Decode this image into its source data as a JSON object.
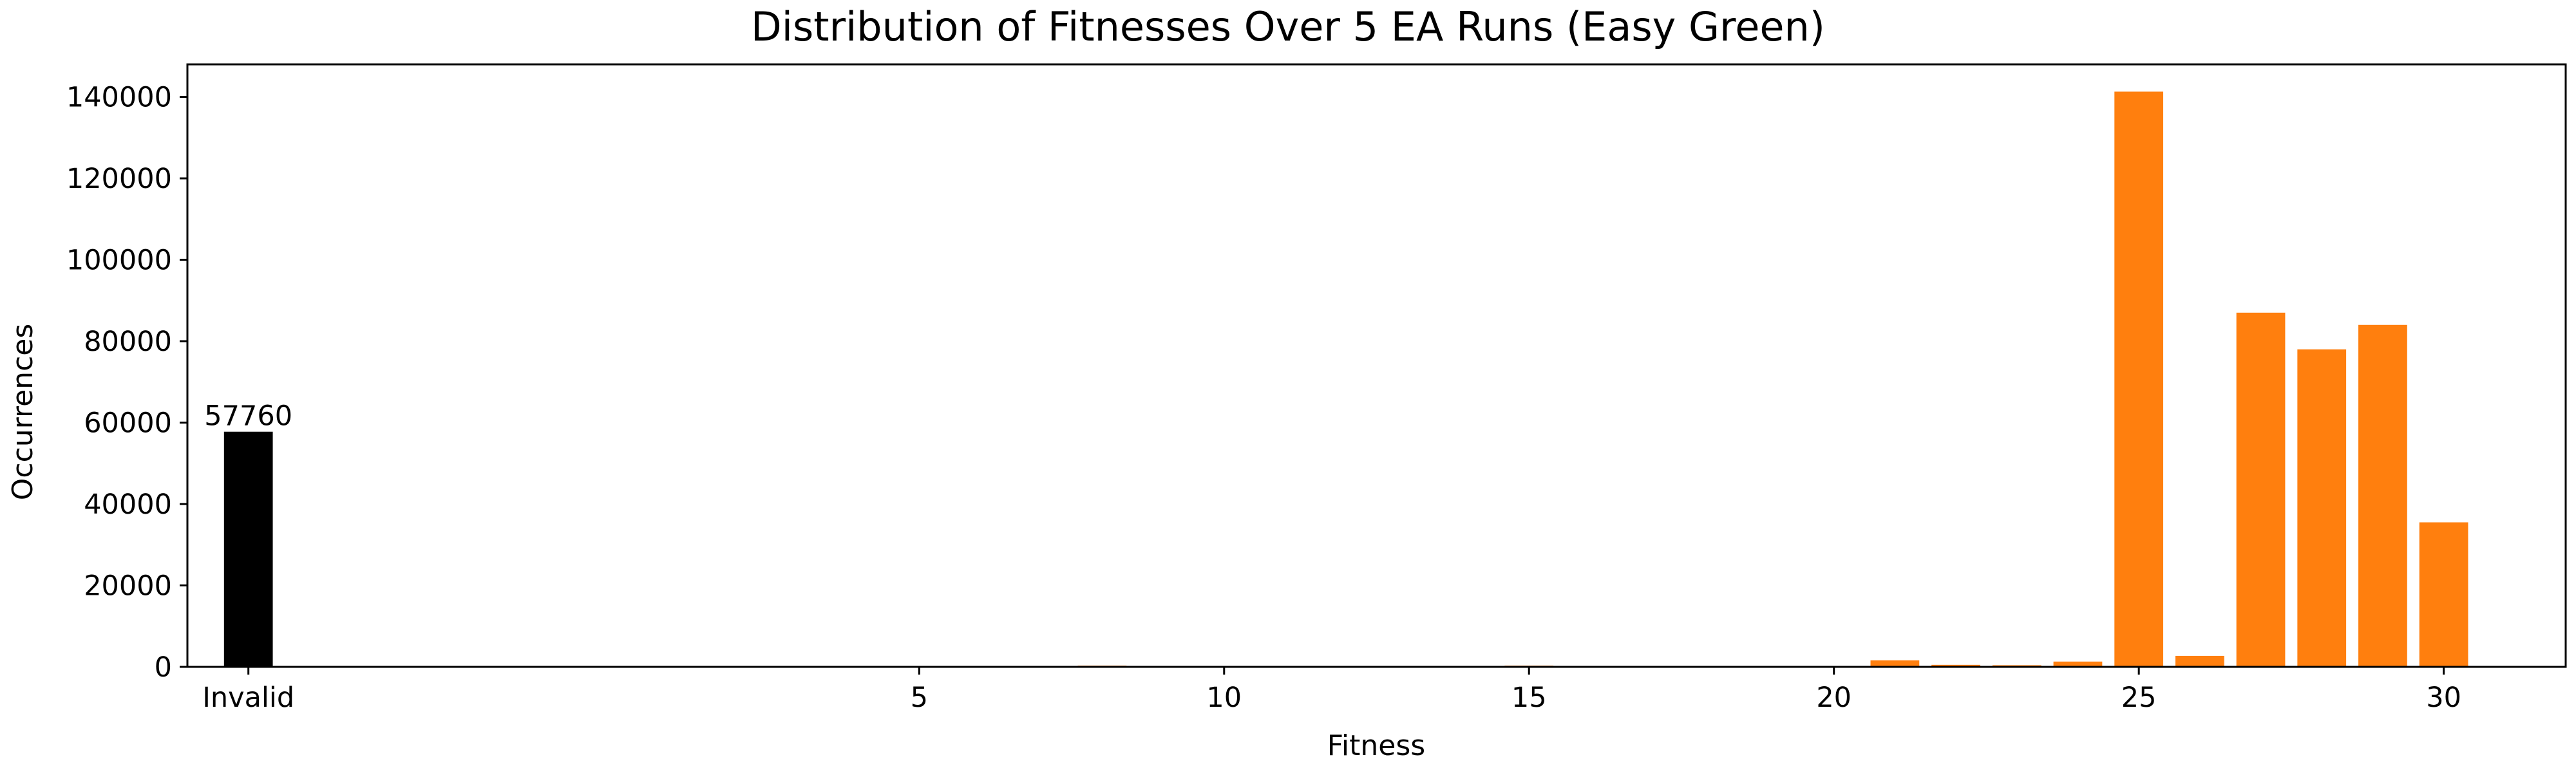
{
  "chart_data": {
    "type": "bar",
    "title": "Distribution of Fitnesses Over 5 EA Runs (Easy Green)",
    "xlabel": "Fitness",
    "ylabel": "Occurrences",
    "xlim": [
      -7,
      32
    ],
    "ylim": [
      0,
      148000
    ],
    "grid": false,
    "colors": {
      "invalid": "#000000",
      "valid": "#ff7f0e"
    },
    "x_ticks": [
      {
        "value": -6,
        "label": "Invalid"
      },
      {
        "value": 5,
        "label": "5"
      },
      {
        "value": 10,
        "label": "10"
      },
      {
        "value": 15,
        "label": "15"
      },
      {
        "value": 20,
        "label": "20"
      },
      {
        "value": 25,
        "label": "25"
      },
      {
        "value": 30,
        "label": "30"
      }
    ],
    "y_ticks": [
      0,
      20000,
      40000,
      60000,
      80000,
      100000,
      120000,
      140000
    ],
    "series": [
      {
        "category": "invalid",
        "x": [
          -6
        ],
        "values": [
          57760
        ],
        "data_labels": [
          "57760"
        ]
      },
      {
        "category": "valid",
        "x": [
          8,
          9,
          10,
          12,
          14,
          15,
          16,
          17,
          19,
          21,
          22,
          23,
          24,
          25,
          26,
          27,
          28,
          29,
          30
        ],
        "values": [
          300,
          200,
          100,
          150,
          100,
          300,
          150,
          150,
          200,
          1600,
          500,
          400,
          1300,
          141300,
          2700,
          87000,
          78000,
          84000,
          35500
        ]
      }
    ]
  }
}
